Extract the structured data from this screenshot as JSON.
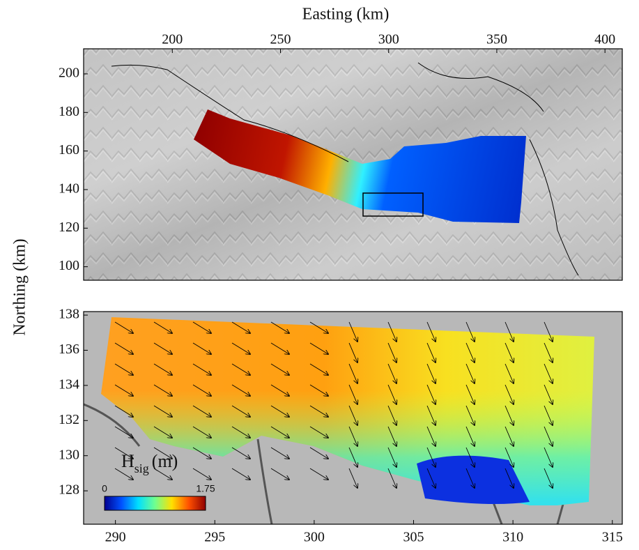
{
  "chart_data": [
    {
      "type": "map",
      "xlabel": "Easting (km)",
      "ylabel": "Northing (km)",
      "xlim": [
        159,
        408
      ],
      "ylim": [
        93,
        213
      ],
      "xticks": [
        200,
        250,
        300,
        350,
        400
      ],
      "yticks": [
        100,
        120,
        140,
        160,
        180,
        200
      ]
    },
    {
      "type": "map",
      "xlim": [
        288.4,
        315.5
      ],
      "ylim": [
        126.1,
        138.2
      ],
      "xticks": [
        290,
        295,
        300,
        305,
        310,
        315
      ],
      "yticks": [
        128,
        130,
        132,
        134,
        136,
        138
      ],
      "colorbar": {
        "label": "H",
        "label_sub": "sig",
        "label_unit": "(m)",
        "clim": [
          0,
          1.75
        ],
        "ticks": [
          0,
          1.75
        ],
        "colors": [
          "#00008f",
          "#0050ff",
          "#00dfff",
          "#70ff8f",
          "#ffe000",
          "#ff5000",
          "#8f0000"
        ]
      }
    }
  ]
}
